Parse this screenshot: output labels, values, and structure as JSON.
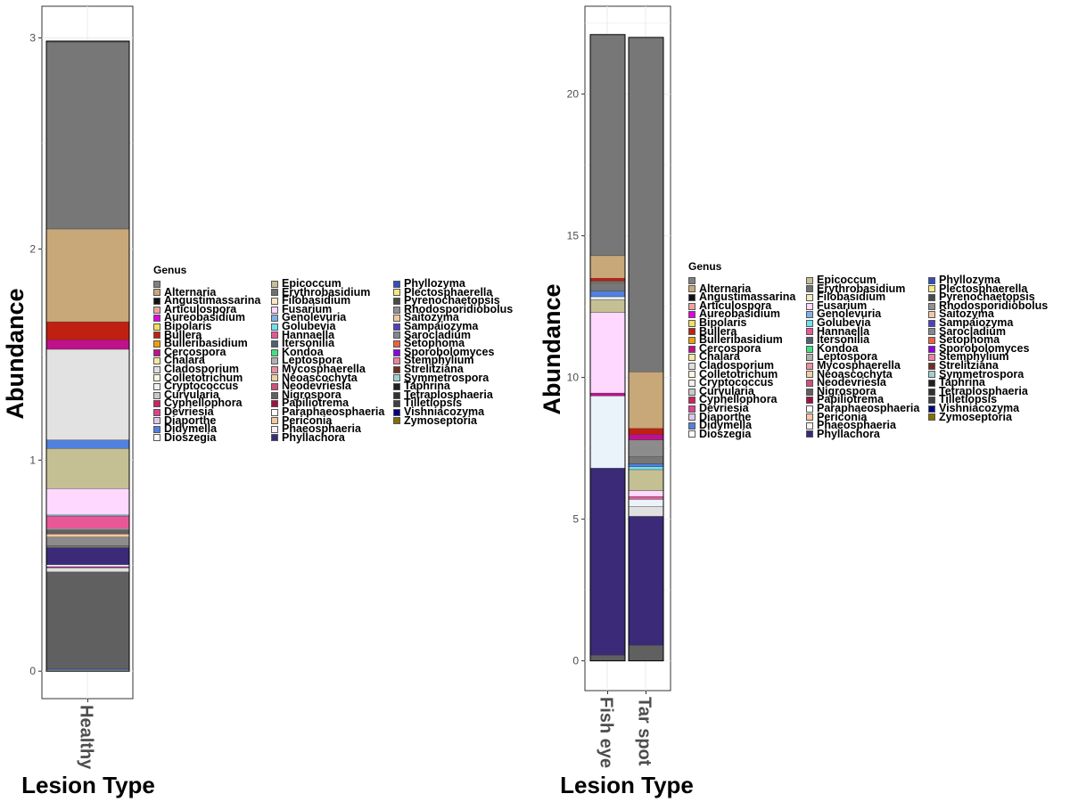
{
  "chart_data": [
    {
      "type": "bar",
      "stacked": true,
      "ylabel": "Abundance",
      "xlabel": "Lesion Type",
      "categories": [
        "Healthy"
      ],
      "ylim": [
        -0.13,
        3.15
      ],
      "yticks": [
        "0",
        "1",
        "2",
        "3"
      ],
      "grid": true,
      "segments": [
        [
          {
            "genus": "Dioszegia",
            "value": 0.005
          },
          {
            "genus": "Didymella",
            "value": 0.005
          },
          {
            "genus": "",
            "value": 0.46
          },
          {
            "genus": "",
            "value": 0.02
          },
          {
            "genus": "Cercospora",
            "value": 0.005
          },
          {
            "genus": "",
            "value": 0.01
          },
          {
            "genus": "Phyllachora",
            "value": 0.08
          },
          {
            "genus": "",
            "value": 0.01
          },
          {
            "genus": "",
            "value": 0.04
          },
          {
            "genus": "Periconia",
            "value": 0.015
          },
          {
            "genus": "",
            "value": 0.02
          },
          {
            "genus": "",
            "value": 0.005
          },
          {
            "genus": "Hannaella",
            "value": 0.06
          },
          {
            "genus": "Golubevia",
            "value": 0.005
          },
          {
            "genus": "Fusarium",
            "value": 0.125
          },
          {
            "genus": "Epicoccum",
            "value": 0.19
          },
          {
            "genus": "Didymella",
            "value": 0.04
          },
          {
            "genus": "",
            "value": 0.43
          },
          {
            "genus": "Cercospora",
            "value": 0.045
          },
          {
            "genus": "Bullera",
            "value": 0.085
          },
          {
            "genus": "Alternaria",
            "value": 0.44
          },
          {
            "genus": "",
            "value": 0.885
          },
          {
            "genus": "",
            "value": 0.005
          }
        ]
      ]
    },
    {
      "type": "bar",
      "stacked": true,
      "ylabel": "Abundance",
      "xlabel": "Lesion Type",
      "categories": [
        "Fish eye",
        "Tar spot"
      ],
      "ylim": [
        -1.05,
        23.1
      ],
      "yticks": [
        "0",
        "5",
        "10",
        "15",
        "20"
      ],
      "grid": true,
      "segments": [
        [
          {
            "genus": "",
            "value": 0.2
          },
          {
            "genus": "Phyllachora",
            "value": 6.6
          },
          {
            "genus": "",
            "value": 2.55
          },
          {
            "genus": "Cercospora",
            "value": 0.1
          },
          {
            "genus": "Fusarium",
            "value": 2.85
          },
          {
            "genus": "Epicoccum",
            "value": 0.45
          },
          {
            "genus": "",
            "value": 0.1
          },
          {
            "genus": "Didymella",
            "value": 0.2
          },
          {
            "genus": "",
            "value": 0.3
          },
          {
            "genus": "",
            "value": 0.05
          },
          {
            "genus": "Bullera",
            "value": 0.1
          },
          {
            "genus": "Alternaria",
            "value": 0.8
          },
          {
            "genus": "",
            "value": 7.8
          }
        ],
        [
          {
            "genus": "",
            "value": 0.55
          },
          {
            "genus": "Phyllachora",
            "value": 4.55
          },
          {
            "genus": "",
            "value": 0.35
          },
          {
            "genus": "",
            "value": 0.25
          },
          {
            "genus": "Hannaella",
            "value": 0.1
          },
          {
            "genus": "Fusarium",
            "value": 0.2
          },
          {
            "genus": "Epicoccum",
            "value": 0.75
          },
          {
            "genus": "Golubevia",
            "value": 0.1
          },
          {
            "genus": "Didymella",
            "value": 0.1
          },
          {
            "genus": "",
            "value": 0.25
          },
          {
            "genus": "",
            "value": 0.6
          },
          {
            "genus": "Cercospora",
            "value": 0.2
          },
          {
            "genus": "Bullera",
            "value": 0.2
          },
          {
            "genus": "Alternaria",
            "value": 2.0
          },
          {
            "genus": "",
            "value": 11.8
          }
        ]
      ]
    }
  ],
  "legend": {
    "title": "Genus",
    "columns": [
      [
        {
          "label": "",
          "color": "#808080"
        },
        {
          "label": "Alternaria",
          "color": "#C8A878"
        },
        {
          "label": "Angustimassarina",
          "color": "#111111"
        },
        {
          "label": "Articulospora",
          "color": "#F0A0A0"
        },
        {
          "label": "Aureobasidium",
          "color": "#E000E0"
        },
        {
          "label": "Bipolaris",
          "color": "#F0E060"
        },
        {
          "label": "Bullera",
          "color": "#C02010"
        },
        {
          "label": "Bulleribasidium",
          "color": "#F0A000"
        },
        {
          "label": "Cercospora",
          "color": "#C0108A"
        },
        {
          "label": "Chalara",
          "color": "#F8E8A0"
        },
        {
          "label": "Cladosporium",
          "color": "#E0E0E0"
        },
        {
          "label": "Colletotrichum",
          "color": "#FFF8E0"
        },
        {
          "label": "Cryptococcus",
          "color": "#F4F0EC"
        },
        {
          "label": "Curvularia",
          "color": "#C8C8C8"
        },
        {
          "label": "Cyphellophora",
          "color": "#D02060"
        },
        {
          "label": "Devriesia",
          "color": "#E04090"
        },
        {
          "label": "Diaporthe",
          "color": "#E0C8E8"
        },
        {
          "label": "Didymella",
          "color": "#5080E0"
        },
        {
          "label": "Dioszegia",
          "color": "#FFFFFF"
        }
      ],
      [
        {
          "label": "Epicoccum",
          "color": "#C4C094"
        },
        {
          "label": "Erythrobasidium",
          "color": "#707070"
        },
        {
          "label": "Filobasidium",
          "color": "#F8E8C0"
        },
        {
          "label": "Fusarium",
          "color": "#FFD8FF"
        },
        {
          "label": "Genolevuria",
          "color": "#80B0E8"
        },
        {
          "label": "Golubevia",
          "color": "#70E0F0"
        },
        {
          "label": "Hannaella",
          "color": "#E85898"
        },
        {
          "label": "Itersonilia",
          "color": "#506070"
        },
        {
          "label": "Kondoa",
          "color": "#40E080"
        },
        {
          "label": "Leptospora",
          "color": "#B0B0B0"
        },
        {
          "label": "Mycosphaerella",
          "color": "#E890A0"
        },
        {
          "label": "Neoascochyta",
          "color": "#F0D0A0"
        },
        {
          "label": "Neodevriesia",
          "color": "#D05080"
        },
        {
          "label": "Nigrospora",
          "color": "#606060"
        },
        {
          "label": "Papiliotrema",
          "color": "#A01040"
        },
        {
          "label": "Paraphaeosphaeria",
          "color": "#FFFFFF"
        },
        {
          "label": "Periconia",
          "color": "#F8C8A0"
        },
        {
          "label": "Phaeosphaeria",
          "color": "#FCF0F0"
        },
        {
          "label": "Phyllachora",
          "color": "#3A2A78"
        }
      ],
      [
        {
          "label": "Phyllozyma",
          "color": "#3050C0"
        },
        {
          "label": "Plectosphaerella",
          "color": "#F8E880"
        },
        {
          "label": "Pyrenochaetopsis",
          "color": "#4A4A4A"
        },
        {
          "label": "Rhodosporidiobolus",
          "color": "#909090"
        },
        {
          "label": "Saitozyma",
          "color": "#F0C8A0"
        },
        {
          "label": "Sampaiozyma",
          "color": "#5040C0"
        },
        {
          "label": "Sarocladium",
          "color": "#808890"
        },
        {
          "label": "Setophoma",
          "color": "#F06040"
        },
        {
          "label": "Sporobolomyces",
          "color": "#9000E0"
        },
        {
          "label": "Stemphylium",
          "color": "#F080A0"
        },
        {
          "label": "Strelitziana",
          "color": "#703020"
        },
        {
          "label": "Symmetrospora",
          "color": "#A0D0D0"
        },
        {
          "label": "Taphrina",
          "color": "#202020"
        },
        {
          "label": "Tetraplosphaeria",
          "color": "#303030"
        },
        {
          "label": "Tilletiopsis",
          "color": "#404040"
        },
        {
          "label": "Vishniacozyma",
          "color": "#000080"
        },
        {
          "label": "Zymoseptoria",
          "color": "#807000"
        }
      ]
    ]
  },
  "colors": {
    "unassigned_top": "#777777",
    "unassigned_dark": "#606060",
    "cladosporium_fill": "#E0E0E0",
    "cryptococcus_fill": "#EAF2FA",
    "grid": "#EBEBEB",
    "panel_border": "#333333"
  }
}
